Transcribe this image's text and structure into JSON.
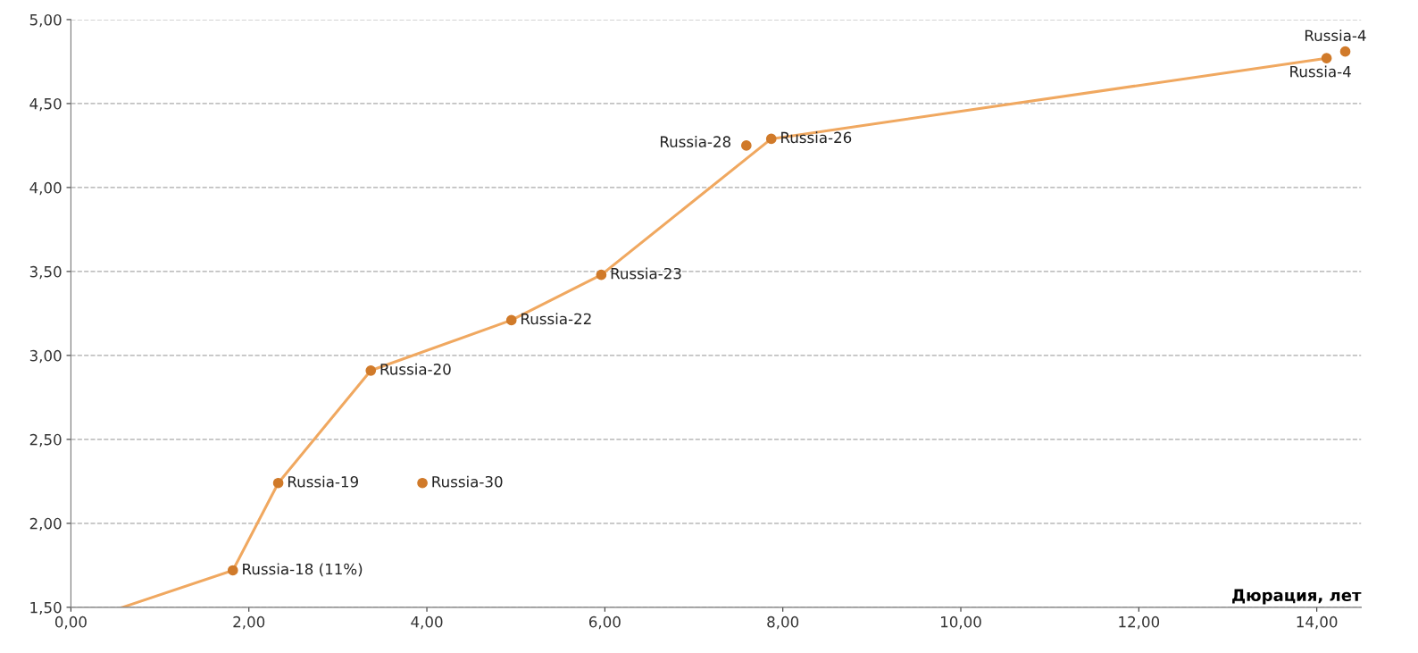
{
  "chart_data": {
    "type": "scatter",
    "xlabel": "Дюрация, лет",
    "xlim": [
      0,
      14.5
    ],
    "ylim": [
      1.5,
      5.0
    ],
    "xticks": [
      {
        "value": 0,
        "label": "0,00"
      },
      {
        "value": 2,
        "label": "2,00"
      },
      {
        "value": 4,
        "label": "4,00"
      },
      {
        "value": 6,
        "label": "6,00"
      },
      {
        "value": 8,
        "label": "8,00"
      },
      {
        "value": 10,
        "label": "10,00"
      },
      {
        "value": 12,
        "label": "12,00"
      },
      {
        "value": 14,
        "label": "14,00"
      }
    ],
    "yticks": [
      {
        "value": 1.5,
        "label": "1,50"
      },
      {
        "value": 2.0,
        "label": "2,00"
      },
      {
        "value": 2.5,
        "label": "2,50"
      },
      {
        "value": 3.0,
        "label": "3,00"
      },
      {
        "value": 3.5,
        "label": "3,50"
      },
      {
        "value": 4.0,
        "label": "4,00"
      },
      {
        "value": 4.5,
        "label": "4,50"
      },
      {
        "value": 5.0,
        "label": "5,00"
      }
    ],
    "grid": "y",
    "legend": false,
    "series": [
      {
        "type": "line",
        "color": "#f0a860",
        "marker": "none",
        "line_style": "solid",
        "x": [
          0.58,
          1.82,
          2.33,
          3.37,
          4.95,
          5.96,
          7.87,
          14.11
        ],
        "values": [
          1.5,
          1.72,
          2.24,
          2.91,
          3.21,
          3.48,
          4.29,
          4.77
        ]
      },
      {
        "color": "#d07a2a",
        "marker": "circle",
        "x": [
          1.82,
          2.33,
          3.37,
          4.95,
          5.96,
          7.87,
          14.11,
          14.32,
          7.59,
          3.95
        ],
        "values": [
          1.72,
          2.24,
          2.91,
          3.21,
          3.48,
          4.29,
          4.77,
          4.81,
          4.25,
          2.24
        ]
      }
    ],
    "annotations": [
      {
        "text": "Russia-18 (11%)",
        "x": 1.82,
        "y": 1.72
      },
      {
        "text": "Russia-19",
        "x": 2.33,
        "y": 2.24
      },
      {
        "text": "Russia-20",
        "x": 3.37,
        "y": 2.91
      },
      {
        "text": "Russia-22",
        "x": 4.95,
        "y": 3.21
      },
      {
        "text": "Russia-23",
        "x": 5.96,
        "y": 3.48
      },
      {
        "text": "Russia-26",
        "x": 7.87,
        "y": 4.29
      },
      {
        "text": "Russia-4",
        "x": 14.11,
        "y": 4.77
      },
      {
        "text": "Russia-4",
        "x": 14.32,
        "y": 4.81
      },
      {
        "text": "Russia-28",
        "x": 7.59,
        "y": 4.25
      },
      {
        "text": "Russia-30",
        "x": 3.95,
        "y": 2.24
      }
    ]
  }
}
